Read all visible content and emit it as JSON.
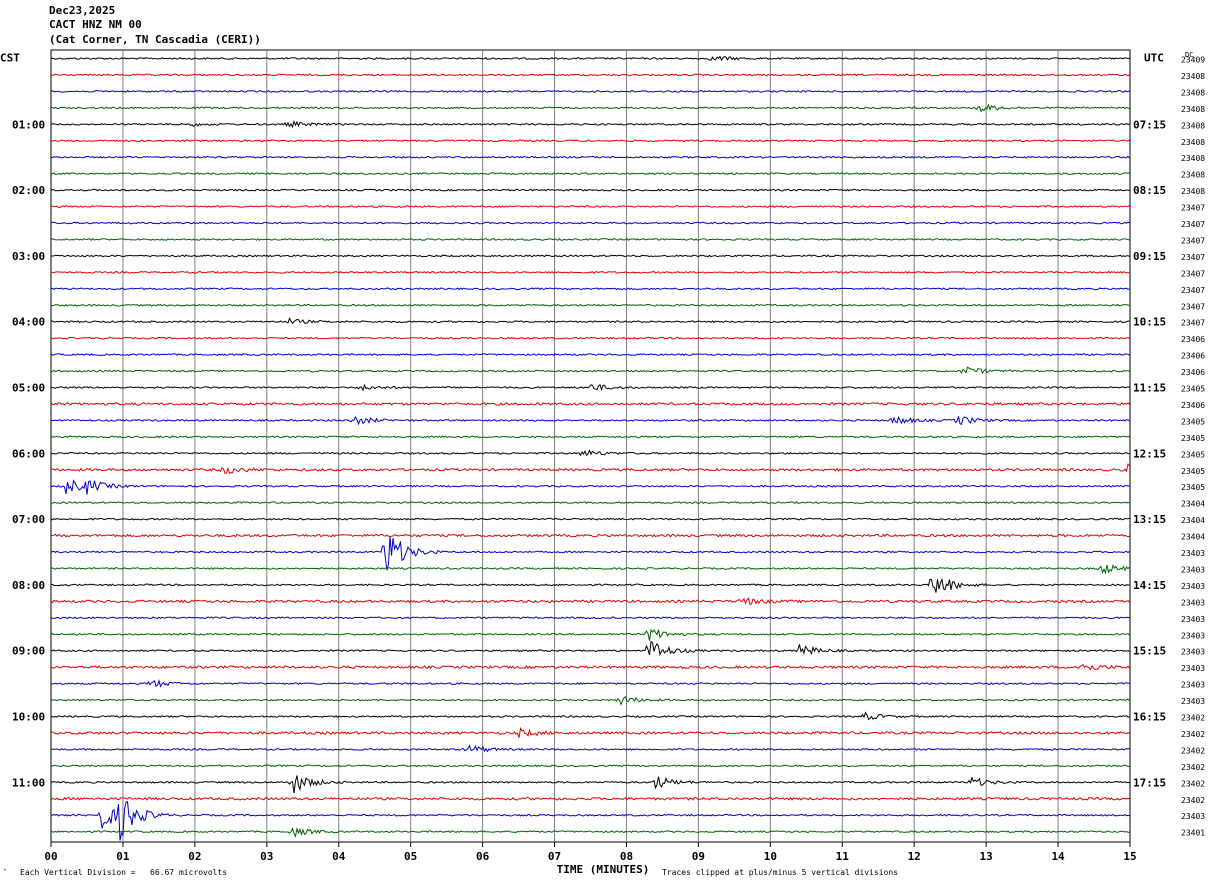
{
  "header": {
    "date": "Dec23,2025",
    "station": "CACT HNZ NM 00",
    "location": "(Cat Corner, TN Cascadia (CERI))"
  },
  "axis": {
    "left_zone": "CST",
    "right_zone": "UTC",
    "dc_label": "DC",
    "xlabel": "TIME (MINUTES)",
    "x_ticks": [
      "00",
      "01",
      "02",
      "03",
      "04",
      "05",
      "06",
      "07",
      "08",
      "09",
      "10",
      "11",
      "12",
      "13",
      "14",
      "15"
    ],
    "left_hour_labels": [
      "01:00",
      "02:00",
      "03:00",
      "04:00",
      "05:00",
      "06:00",
      "07:00",
      "08:00",
      "09:00",
      "10:00",
      "11:00"
    ],
    "right_hour_labels": [
      "07:15",
      "08:15",
      "09:15",
      "10:15",
      "11:15",
      "12:15",
      "13:15",
      "14:15",
      "15:15",
      "16:15",
      "17:15"
    ]
  },
  "footer": {
    "scale_note": "Each Vertical Division =   66.67 microvolts",
    "clip_note": "Traces clipped at plus/minus 5 vertical divisions"
  },
  "colors": {
    "trace_cycle": [
      "#000000",
      "#e00000",
      "#0000c8",
      "#006400"
    ],
    "grid": "#7f7f7f"
  },
  "chart_data": {
    "type": "line",
    "title": "",
    "xlabel": "TIME (MINUTES)",
    "xlim": [
      0,
      15
    ],
    "trace_count": 48,
    "minutes_per_trace": 15,
    "dc_offsets": [
      "23409",
      "23408",
      "23408",
      "23408",
      "23408",
      "23408",
      "23408",
      "23408",
      "23408",
      "23407",
      "23407",
      "23407",
      "23407",
      "23407",
      "23407",
      "23407",
      "23407",
      "23406",
      "23406",
      "23406",
      "23405",
      "23406",
      "23405",
      "23405",
      "23405",
      "23405",
      "23405",
      "23404",
      "23404",
      "23404",
      "23403",
      "23403",
      "23403",
      "23403",
      "23403",
      "23403",
      "23403",
      "23403",
      "23403",
      "23403",
      "23402",
      "23402",
      "23402",
      "23402",
      "23402",
      "23402",
      "23403",
      "23401"
    ],
    "events": [
      {
        "trace": 0,
        "minute": 9.2,
        "amplitude": 3
      },
      {
        "trace": 3,
        "minute": 12.9,
        "amplitude": 5
      },
      {
        "trace": 4,
        "minute": 3.3,
        "amplitude": 3
      },
      {
        "trace": 4,
        "minute": 1.9,
        "amplitude": 2
      },
      {
        "trace": 16,
        "minute": 3.3,
        "amplitude": 3
      },
      {
        "trace": 19,
        "minute": 12.7,
        "amplitude": 5
      },
      {
        "trace": 20,
        "minute": 7.5,
        "amplitude": 4
      },
      {
        "trace": 20,
        "minute": 4.3,
        "amplitude": 3
      },
      {
        "trace": 22,
        "minute": 4.2,
        "amplitude": 5
      },
      {
        "trace": 22,
        "minute": 11.7,
        "amplitude": 5
      },
      {
        "trace": 22,
        "minute": 12.6,
        "amplitude": 5
      },
      {
        "trace": 24,
        "minute": 7.4,
        "amplitude": 4
      },
      {
        "trace": 25,
        "minute": 2.4,
        "amplitude": 4
      },
      {
        "trace": 25,
        "minute": 14.95,
        "amplitude": 5
      },
      {
        "trace": 26,
        "minute": 0.2,
        "amplitude": 9
      },
      {
        "trace": 26,
        "minute": 0.5,
        "amplitude": 6
      },
      {
        "trace": 30,
        "minute": 4.65,
        "amplitude": 28
      },
      {
        "trace": 31,
        "minute": 14.6,
        "amplitude": 6
      },
      {
        "trace": 32,
        "minute": 12.25,
        "amplitude": 16
      },
      {
        "trace": 33,
        "minute": 9.6,
        "amplitude": 4
      },
      {
        "trace": 35,
        "minute": 8.3,
        "amplitude": 8
      },
      {
        "trace": 36,
        "minute": 8.3,
        "amplitude": 14
      },
      {
        "trace": 36,
        "minute": 10.4,
        "amplitude": 7
      },
      {
        "trace": 37,
        "minute": 14.3,
        "amplitude": 5
      },
      {
        "trace": 38,
        "minute": 1.4,
        "amplitude": 4
      },
      {
        "trace": 39,
        "minute": 7.9,
        "amplitude": 5
      },
      {
        "trace": 40,
        "minute": 11.3,
        "amplitude": 4
      },
      {
        "trace": 41,
        "minute": 6.5,
        "amplitude": 4
      },
      {
        "trace": 42,
        "minute": 5.8,
        "amplitude": 5
      },
      {
        "trace": 44,
        "minute": 3.35,
        "amplitude": 12
      },
      {
        "trace": 44,
        "minute": 8.4,
        "amplitude": 7
      },
      {
        "trace": 44,
        "minute": 12.8,
        "amplitude": 5
      },
      {
        "trace": 46,
        "minute": 0.7,
        "amplitude": 15
      },
      {
        "trace": 46,
        "minute": 0.95,
        "amplitude": 22
      },
      {
        "trace": 47,
        "minute": 3.35,
        "amplitude": 5
      }
    ]
  }
}
